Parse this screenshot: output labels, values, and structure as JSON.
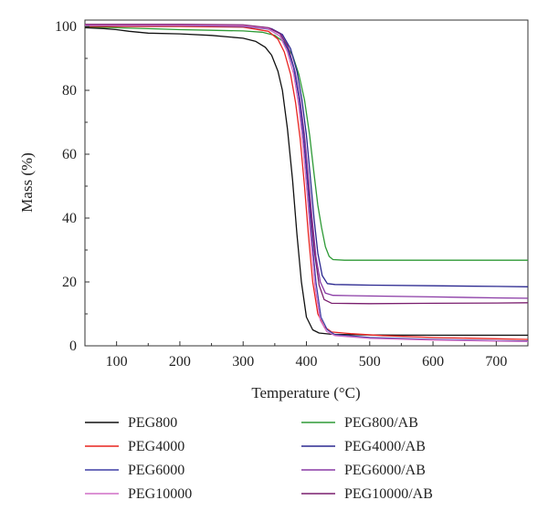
{
  "chart_data": {
    "type": "line",
    "title": "",
    "xlabel": "Temperature (°C)",
    "ylabel": "Mass (%)",
    "xlim": [
      50,
      750
    ],
    "ylim": [
      0,
      102
    ],
    "xticks": [
      100,
      200,
      300,
      400,
      500,
      600,
      700
    ],
    "yticks": [
      0,
      20,
      40,
      60,
      80,
      100
    ],
    "grid": false,
    "legend_position": "below",
    "series": [
      {
        "name": "PEG800",
        "color": "#111111",
        "points": [
          [
            50,
            99.6
          ],
          [
            80,
            99.3
          ],
          [
            100,
            99
          ],
          [
            120,
            98.5
          ],
          [
            150,
            97.9
          ],
          [
            200,
            97.7
          ],
          [
            250,
            97.2
          ],
          [
            300,
            96.3
          ],
          [
            320,
            95.3
          ],
          [
            335,
            93.5
          ],
          [
            345,
            91
          ],
          [
            355,
            86
          ],
          [
            362,
            80
          ],
          [
            370,
            68
          ],
          [
            378,
            52
          ],
          [
            385,
            35
          ],
          [
            392,
            20
          ],
          [
            400,
            9
          ],
          [
            410,
            5
          ],
          [
            420,
            4
          ],
          [
            440,
            3.6
          ],
          [
            500,
            3.4
          ],
          [
            600,
            3.3
          ],
          [
            750,
            3.3
          ]
        ]
      },
      {
        "name": "PEG4000",
        "color": "#e8231f",
        "points": [
          [
            50,
            100
          ],
          [
            200,
            100
          ],
          [
            300,
            99.8
          ],
          [
            340,
            98.5
          ],
          [
            355,
            96
          ],
          [
            365,
            92
          ],
          [
            375,
            85
          ],
          [
            383,
            76
          ],
          [
            390,
            65
          ],
          [
            397,
            50
          ],
          [
            403,
            35
          ],
          [
            410,
            20
          ],
          [
            418,
            10
          ],
          [
            428,
            6
          ],
          [
            440,
            4.3
          ],
          [
            470,
            3.8
          ],
          [
            520,
            3.2
          ],
          [
            600,
            2.6
          ],
          [
            700,
            2.2
          ],
          [
            750,
            2
          ]
        ]
      },
      {
        "name": "PEG6000",
        "color": "#3e3fa6",
        "points": [
          [
            50,
            100.3
          ],
          [
            200,
            100.3
          ],
          [
            300,
            100
          ],
          [
            340,
            99.2
          ],
          [
            358,
            97
          ],
          [
            370,
            93
          ],
          [
            380,
            87
          ],
          [
            388,
            78
          ],
          [
            395,
            66
          ],
          [
            402,
            50
          ],
          [
            408,
            35
          ],
          [
            415,
            20
          ],
          [
            423,
            9
          ],
          [
            433,
            5
          ],
          [
            445,
            3.5
          ],
          [
            500,
            2.6
          ],
          [
            600,
            2
          ],
          [
            700,
            1.6
          ],
          [
            750,
            1.5
          ]
        ]
      },
      {
        "name": "PEG10000",
        "color": "#d16fc6",
        "points": [
          [
            50,
            100.4
          ],
          [
            200,
            100.4
          ],
          [
            300,
            100.2
          ],
          [
            340,
            99.3
          ],
          [
            358,
            97
          ],
          [
            370,
            92
          ],
          [
            380,
            85
          ],
          [
            388,
            75
          ],
          [
            395,
            62
          ],
          [
            401,
            48
          ],
          [
            407,
            33
          ],
          [
            414,
            18
          ],
          [
            422,
            8
          ],
          [
            432,
            4.5
          ],
          [
            445,
            3.2
          ],
          [
            500,
            2.3
          ],
          [
            600,
            1.8
          ],
          [
            700,
            1.5
          ],
          [
            750,
            1.3
          ]
        ]
      },
      {
        "name": "PEG800/AB",
        "color": "#2e9a36",
        "points": [
          [
            50,
            99.8
          ],
          [
            100,
            99.6
          ],
          [
            150,
            99.3
          ],
          [
            200,
            99
          ],
          [
            250,
            98.8
          ],
          [
            300,
            98.6
          ],
          [
            330,
            98.2
          ],
          [
            350,
            97.2
          ],
          [
            365,
            95
          ],
          [
            378,
            91
          ],
          [
            388,
            85
          ],
          [
            397,
            77
          ],
          [
            405,
            66
          ],
          [
            412,
            54
          ],
          [
            418,
            44
          ],
          [
            424,
            37
          ],
          [
            430,
            31
          ],
          [
            436,
            28
          ],
          [
            442,
            27
          ],
          [
            460,
            26.8
          ],
          [
            550,
            26.8
          ],
          [
            650,
            26.8
          ],
          [
            750,
            26.8
          ]
        ]
      },
      {
        "name": "PEG4000/AB",
        "color": "#2b2890",
        "points": [
          [
            50,
            100.5
          ],
          [
            200,
            100.5
          ],
          [
            300,
            100.3
          ],
          [
            345,
            99.3
          ],
          [
            362,
            97.5
          ],
          [
            375,
            93
          ],
          [
            385,
            86
          ],
          [
            393,
            77
          ],
          [
            400,
            66
          ],
          [
            406,
            53
          ],
          [
            412,
            40
          ],
          [
            418,
            29
          ],
          [
            425,
            22
          ],
          [
            433,
            19.5
          ],
          [
            445,
            19.2
          ],
          [
            500,
            19
          ],
          [
            600,
            18.8
          ],
          [
            700,
            18.6
          ],
          [
            750,
            18.5
          ]
        ]
      },
      {
        "name": "PEG6000/AB",
        "color": "#8a3aa5",
        "points": [
          [
            50,
            100.6
          ],
          [
            200,
            100.6
          ],
          [
            300,
            100.4
          ],
          [
            342,
            99.5
          ],
          [
            360,
            97.5
          ],
          [
            372,
            93
          ],
          [
            382,
            86
          ],
          [
            390,
            77
          ],
          [
            397,
            66
          ],
          [
            403,
            53
          ],
          [
            409,
            40
          ],
          [
            415,
            28
          ],
          [
            422,
            20
          ],
          [
            430,
            16.5
          ],
          [
            442,
            15.8
          ],
          [
            500,
            15.6
          ],
          [
            600,
            15.3
          ],
          [
            700,
            15
          ],
          [
            750,
            14.9
          ]
        ]
      },
      {
        "name": "PEG10000/AB",
        "color": "#7a1e6e",
        "points": [
          [
            50,
            100.7
          ],
          [
            200,
            100.7
          ],
          [
            300,
            100.5
          ],
          [
            340,
            99.6
          ],
          [
            358,
            97.8
          ],
          [
            370,
            94
          ],
          [
            380,
            87
          ],
          [
            388,
            78
          ],
          [
            395,
            67
          ],
          [
            401,
            54
          ],
          [
            407,
            41
          ],
          [
            413,
            29
          ],
          [
            420,
            19
          ],
          [
            428,
            14.5
          ],
          [
            440,
            13.3
          ],
          [
            500,
            13.2
          ],
          [
            600,
            13.3
          ],
          [
            700,
            13.4
          ],
          [
            750,
            13.5
          ]
        ]
      }
    ]
  }
}
